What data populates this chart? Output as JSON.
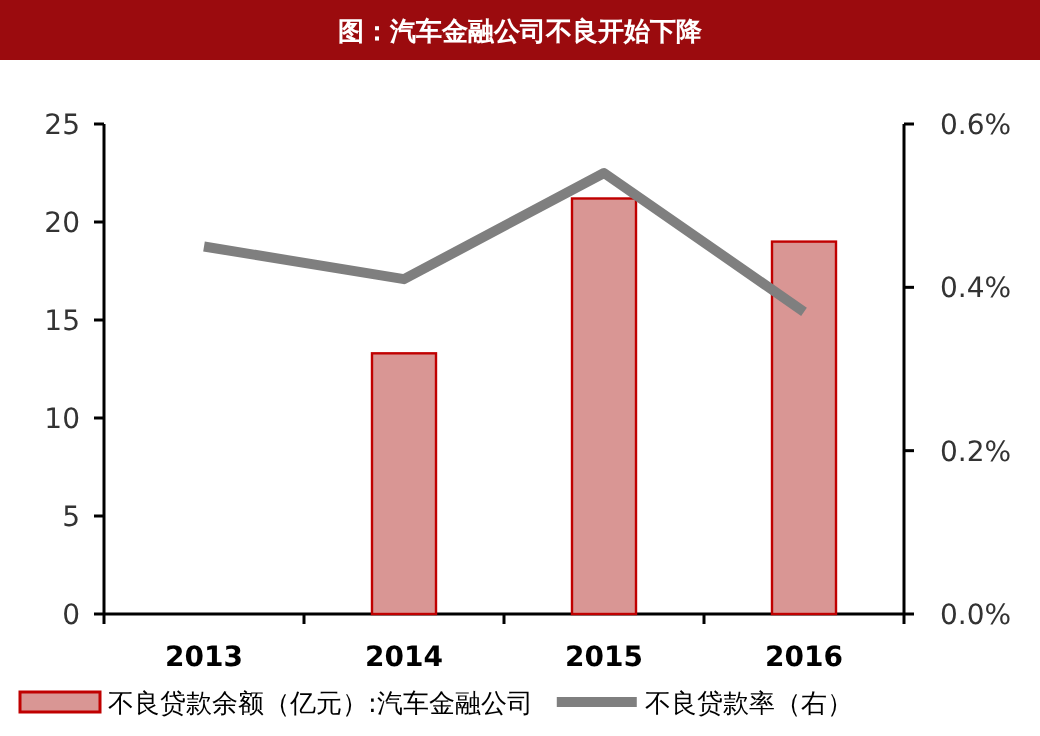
{
  "chart_data": {
    "type": "bar",
    "title": "图：汽车金融公司不良开始下降",
    "categories": [
      "2013",
      "2014",
      "2015",
      "2016"
    ],
    "series": [
      {
        "name": "不良贷款余额（亿元）:汽车金融公司",
        "color": "#d99694",
        "values": [
          null,
          13.3,
          21.2,
          19.0
        ]
      },
      {
        "name": "不良贷款率（右）",
        "type": "line",
        "axis": "y2",
        "color": "#7f7f7f",
        "values": [
          0.45,
          0.41,
          0.54,
          0.37
        ]
      }
    ],
    "ylim": [
      0,
      25
    ],
    "yticks": [
      0,
      5,
      10,
      15,
      20,
      25
    ],
    "y2lim": [
      0,
      0.6
    ],
    "y2ticks": [
      {
        "value": 0,
        "label": "0.0%"
      },
      {
        "value": 0.2,
        "label": "0.2%"
      },
      {
        "value": 0.4,
        "label": "0.4%"
      },
      {
        "value": 0.6,
        "label": "0.6%"
      }
    ],
    "grid": false,
    "legend": "bottom",
    "marker": "none",
    "line_style": "solid"
  }
}
